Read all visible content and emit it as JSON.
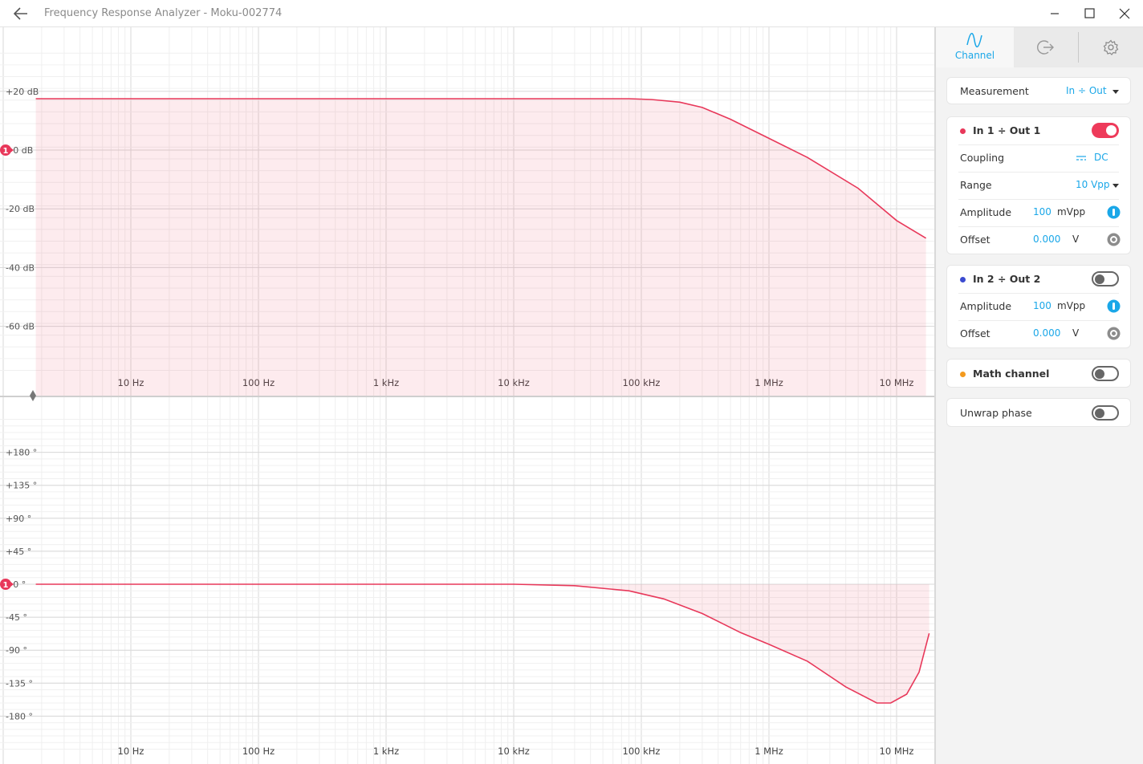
{
  "window": {
    "title": "Frequency Response Analyzer - Moku-002774"
  },
  "plots": {
    "x_tick_labels": [
      "10 Hz",
      "100 Hz",
      "1 kHz",
      "10 kHz",
      "100 kHz",
      "1 MHz",
      "10 MHz"
    ],
    "magnitude": {
      "y_tick_labels": [
        "+20 dB",
        "+0 dB",
        "-20 dB",
        "-40 dB",
        "-60 dB"
      ],
      "marker": "1"
    },
    "phase": {
      "y_tick_labels": [
        "+180 °",
        "+135 °",
        "+90 °",
        "+45 °",
        "+0 °",
        "-45 °",
        "-90 °",
        "-135 °",
        "-180 °"
      ],
      "marker": "1"
    },
    "trace_color": "#e8385a"
  },
  "chart_data": [
    {
      "type": "line",
      "x_scale": "log",
      "xlim": [
        1,
        18000000
      ],
      "ylim": [
        -75,
        35
      ],
      "y_ticks": [
        20,
        0,
        -20,
        -40,
        -60
      ],
      "series": [
        {
          "x": [
            1.8,
            10,
            100,
            1000,
            10000,
            80000,
            120000,
            200000,
            300000,
            500000,
            1000000,
            2000000,
            5000000,
            10000000,
            17000000
          ],
          "y": [
            17.5,
            17.5,
            17.5,
            17.5,
            17.5,
            17.5,
            17.2,
            16.3,
            14.5,
            10.5,
            4,
            -2.5,
            -13,
            -24,
            -30
          ]
        }
      ]
    },
    {
      "type": "line",
      "x_scale": "log",
      "xlim": [
        1,
        18000000
      ],
      "ylim": [
        -225,
        225
      ],
      "y_ticks": [
        180,
        135,
        90,
        45,
        0,
        -45,
        -90,
        -135,
        -180
      ],
      "series": [
        {
          "x": [
            1.8,
            10,
            100,
            1000,
            10000,
            30000,
            80000,
            150000,
            300000,
            600000,
            1000000,
            2000000,
            4000000,
            7000000,
            9000000,
            12000000,
            15000000,
            18000000
          ],
          "y": [
            0,
            0,
            0,
            0,
            0,
            -2,
            -9,
            -20,
            -40,
            -66,
            -82,
            -105,
            -140,
            -162,
            -162,
            -150,
            -120,
            -67
          ]
        }
      ]
    }
  ],
  "tabs": {
    "channel_label": "Channel"
  },
  "measurement": {
    "label": "Measurement",
    "value": "In ÷ Out"
  },
  "ch1": {
    "title": "In 1 ÷ Out 1",
    "color": "#e8385a",
    "coupling_label": "Coupling",
    "coupling_value": "DC",
    "range_label": "Range",
    "range_value": "10 Vpp",
    "amplitude_label": "Amplitude",
    "amplitude_value": "100",
    "amplitude_unit": "mVpp",
    "offset_label": "Offset",
    "offset_value": "0.000",
    "offset_unit": "V"
  },
  "ch2": {
    "title": "In 2 ÷ Out 2",
    "color": "#3b4bd0",
    "amplitude_label": "Amplitude",
    "amplitude_value": "100",
    "amplitude_unit": "mVpp",
    "offset_label": "Offset",
    "offset_value": "0.000",
    "offset_unit": "V"
  },
  "math": {
    "title": "Math channel",
    "color": "#f39a1e"
  },
  "unwrap": {
    "label": "Unwrap phase"
  }
}
